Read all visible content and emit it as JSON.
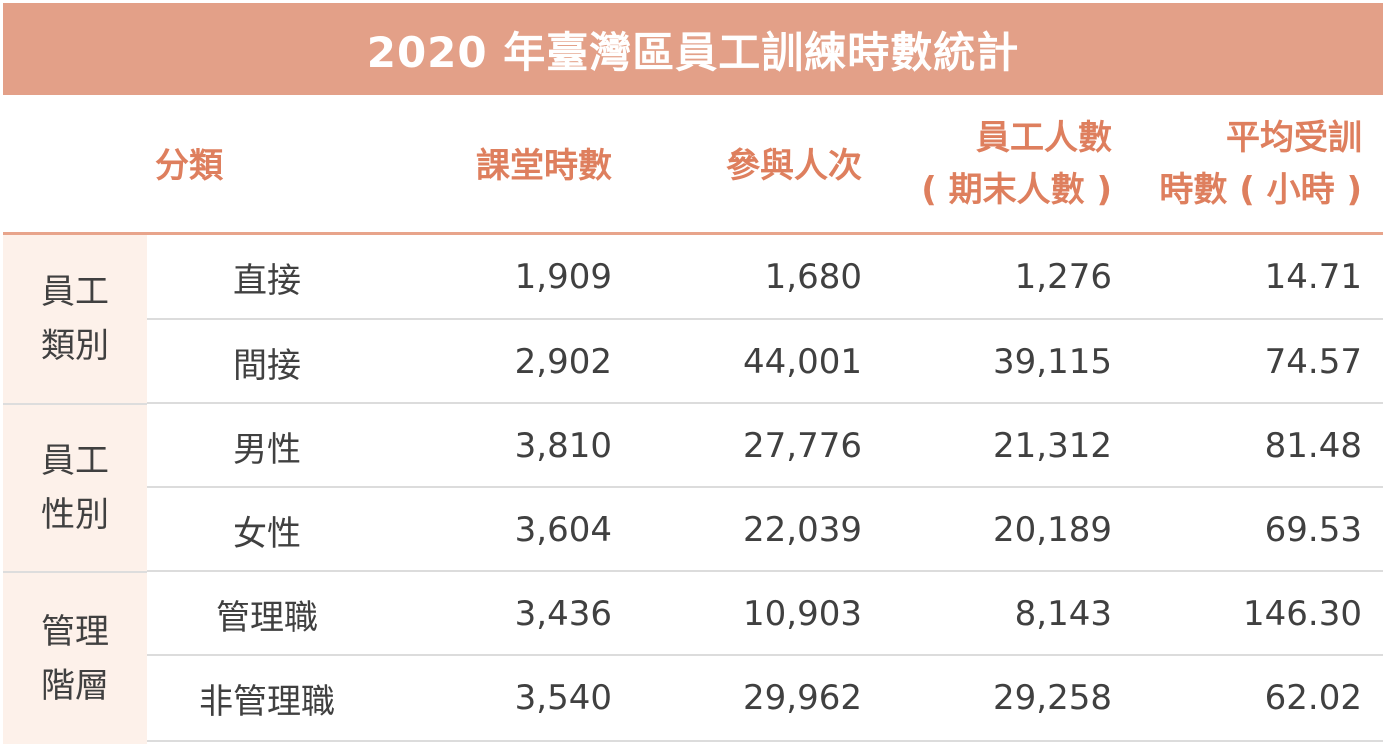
{
  "title": "2020 年臺灣區員工訓練時數統計",
  "headers": {
    "category": "分類",
    "class_hours": "課堂時數",
    "participants": "參與人次",
    "employees_line1": "員工人數",
    "employees_line2": "( 期末人數 )",
    "avg_hours_line1": "平均受訓",
    "avg_hours_line2": "時數 ( 小時 )"
  },
  "groups": [
    {
      "label_line1": "員工",
      "label_line2": "類別",
      "rows": [
        {
          "category": "直接",
          "class_hours": "1,909",
          "participants": "1,680",
          "employees": "1,276",
          "avg_hours": "14.71"
        },
        {
          "category": "間接",
          "class_hours": "2,902",
          "participants": "44,001",
          "employees": "39,115",
          "avg_hours": "74.57"
        }
      ]
    },
    {
      "label_line1": "員工",
      "label_line2": "性別",
      "rows": [
        {
          "category": "男性",
          "class_hours": "3,810",
          "participants": "27,776",
          "employees": "21,312",
          "avg_hours": "81.48"
        },
        {
          "category": "女性",
          "class_hours": "3,604",
          "participants": "22,039",
          "employees": "20,189",
          "avg_hours": "69.53"
        }
      ]
    },
    {
      "label_line1": "管理",
      "label_line2": "階層",
      "rows": [
        {
          "category": "管理職",
          "class_hours": "3,436",
          "participants": "10,903",
          "employees": "8,143",
          "avg_hours": "146.30"
        },
        {
          "category": "非管理職",
          "class_hours": "3,540",
          "participants": "29,962",
          "employees": "29,258",
          "avg_hours": "62.02"
        }
      ]
    }
  ]
}
